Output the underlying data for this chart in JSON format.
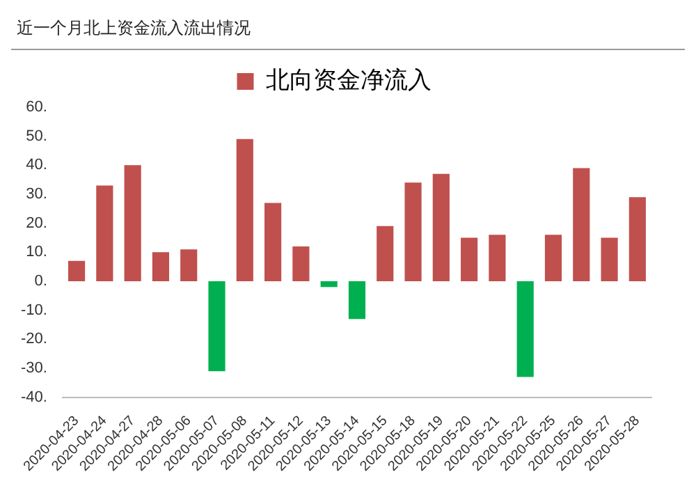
{
  "chart_data": {
    "type": "bar",
    "title": "近一个月北上资金流入流出情况",
    "categories": [
      "2020-04-23",
      "2020-04-24",
      "2020-04-27",
      "2020-04-28",
      "2020-05-06",
      "2020-05-07",
      "2020-05-08",
      "2020-05-11",
      "2020-05-12",
      "2020-05-13",
      "2020-05-14",
      "2020-05-15",
      "2020-05-18",
      "2020-05-19",
      "2020-05-20",
      "2020-05-21",
      "2020-05-22",
      "2020-05-25",
      "2020-05-26",
      "2020-05-27",
      "2020-05-28"
    ],
    "series": [
      {
        "name": "北向资金净流入",
        "color": "#c0504d",
        "colors": [
          "#c0504d",
          "#c0504d",
          "#c0504d",
          "#c0504d",
          "#c0504d",
          "#00b050",
          "#c0504d",
          "#c0504d",
          "#c0504d",
          "#00b050",
          "#00b050",
          "#c0504d",
          "#c0504d",
          "#c0504d",
          "#c0504d",
          "#c0504d",
          "#00b050",
          "#c0504d",
          "#c0504d",
          "#c0504d",
          "#c0504d"
        ],
        "values": [
          7,
          33,
          40,
          10,
          11,
          -31,
          49,
          27,
          12,
          -2,
          -13,
          19,
          34,
          37,
          15,
          16,
          -33,
          16,
          39,
          15,
          29
        ]
      }
    ],
    "ylim": [
      -40,
      60
    ],
    "yticks": [
      {
        "value": -40,
        "label": "-40."
      },
      {
        "value": -30,
        "label": "-30."
      },
      {
        "value": -20,
        "label": "-20."
      },
      {
        "value": -10,
        "label": "-10."
      },
      {
        "value": 0,
        "label": "0."
      },
      {
        "value": 10,
        "label": "10."
      },
      {
        "value": 20,
        "label": "20."
      },
      {
        "value": 30,
        "label": "30."
      },
      {
        "value": 40,
        "label": "40."
      },
      {
        "value": 50,
        "label": "50."
      },
      {
        "value": 60,
        "label": "60."
      }
    ],
    "grid": false,
    "legend": "top"
  }
}
